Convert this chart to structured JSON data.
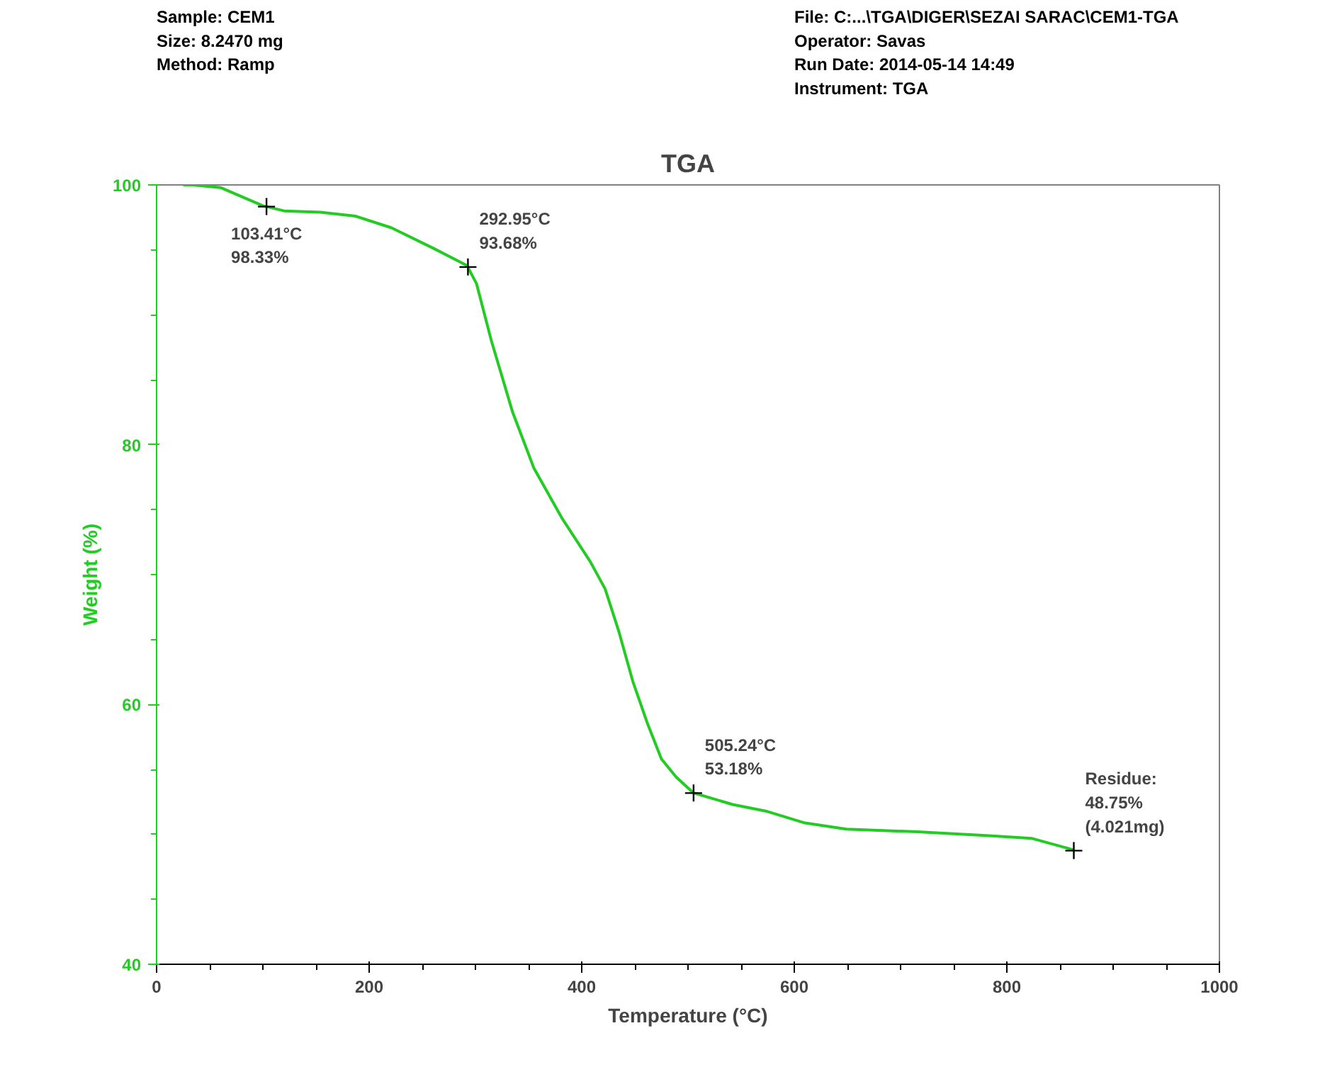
{
  "chart_data": {
    "type": "line",
    "title": "TGA",
    "xlabel": "Temperature (°C)",
    "ylabel": "Weight (%)",
    "x": [
      25,
      33.5,
      60,
      100,
      120,
      154,
      187,
      221,
      261,
      292,
      301,
      315,
      335,
      355,
      381,
      408,
      422,
      435,
      448,
      462,
      475,
      489,
      505,
      542,
      573,
      609,
      649,
      716,
      783,
      823,
      863
    ],
    "series": [
      {
        "color": "#22cc22",
        "values": [
          100,
          100,
          99.8,
          98.4,
          98.0,
          97.9,
          97.6,
          96.7,
          95.1,
          93.8,
          92.4,
          88,
          82.5,
          78.2,
          74.4,
          71,
          68.9,
          65.6,
          61.8,
          58.5,
          55.8,
          54.4,
          53.2,
          52.3,
          51.8,
          50.9,
          50.4,
          50.2,
          49.9,
          49.7,
          48.8
        ]
      }
    ],
    "xlim": [
      0,
      1000
    ],
    "xticks": [
      0,
      200,
      400,
      600,
      800,
      1000
    ],
    "ylim": [
      40,
      100
    ],
    "yticks": [
      40,
      60,
      80,
      100
    ],
    "grid": false,
    "marker": "none",
    "line_style": "solid",
    "annotations": [
      "Sample: CEM1\nSize:  8.2470 mg\nMethod: Ramp",
      "File: C:...\\TGA\\DIGER\\SEZAI SARAC\\CEM1-TGA\nOperator: Savas\nRun Date: 2014-05-14 14:49\nInstrument: TGA",
      {
        "text": "103.41°C\n98.33%",
        "x": 103.41,
        "y": 98.33
      },
      {
        "text": "292.95°C\n93.68%",
        "x": 292.95,
        "y": 93.68
      },
      {
        "text": "505.24°C\n53.18%",
        "x": 505.24,
        "y": 53.18
      },
      {
        "text": "Residue:\n48.75%\n(4.021mg)",
        "x": 863,
        "y": 48.75
      }
    ]
  }
}
